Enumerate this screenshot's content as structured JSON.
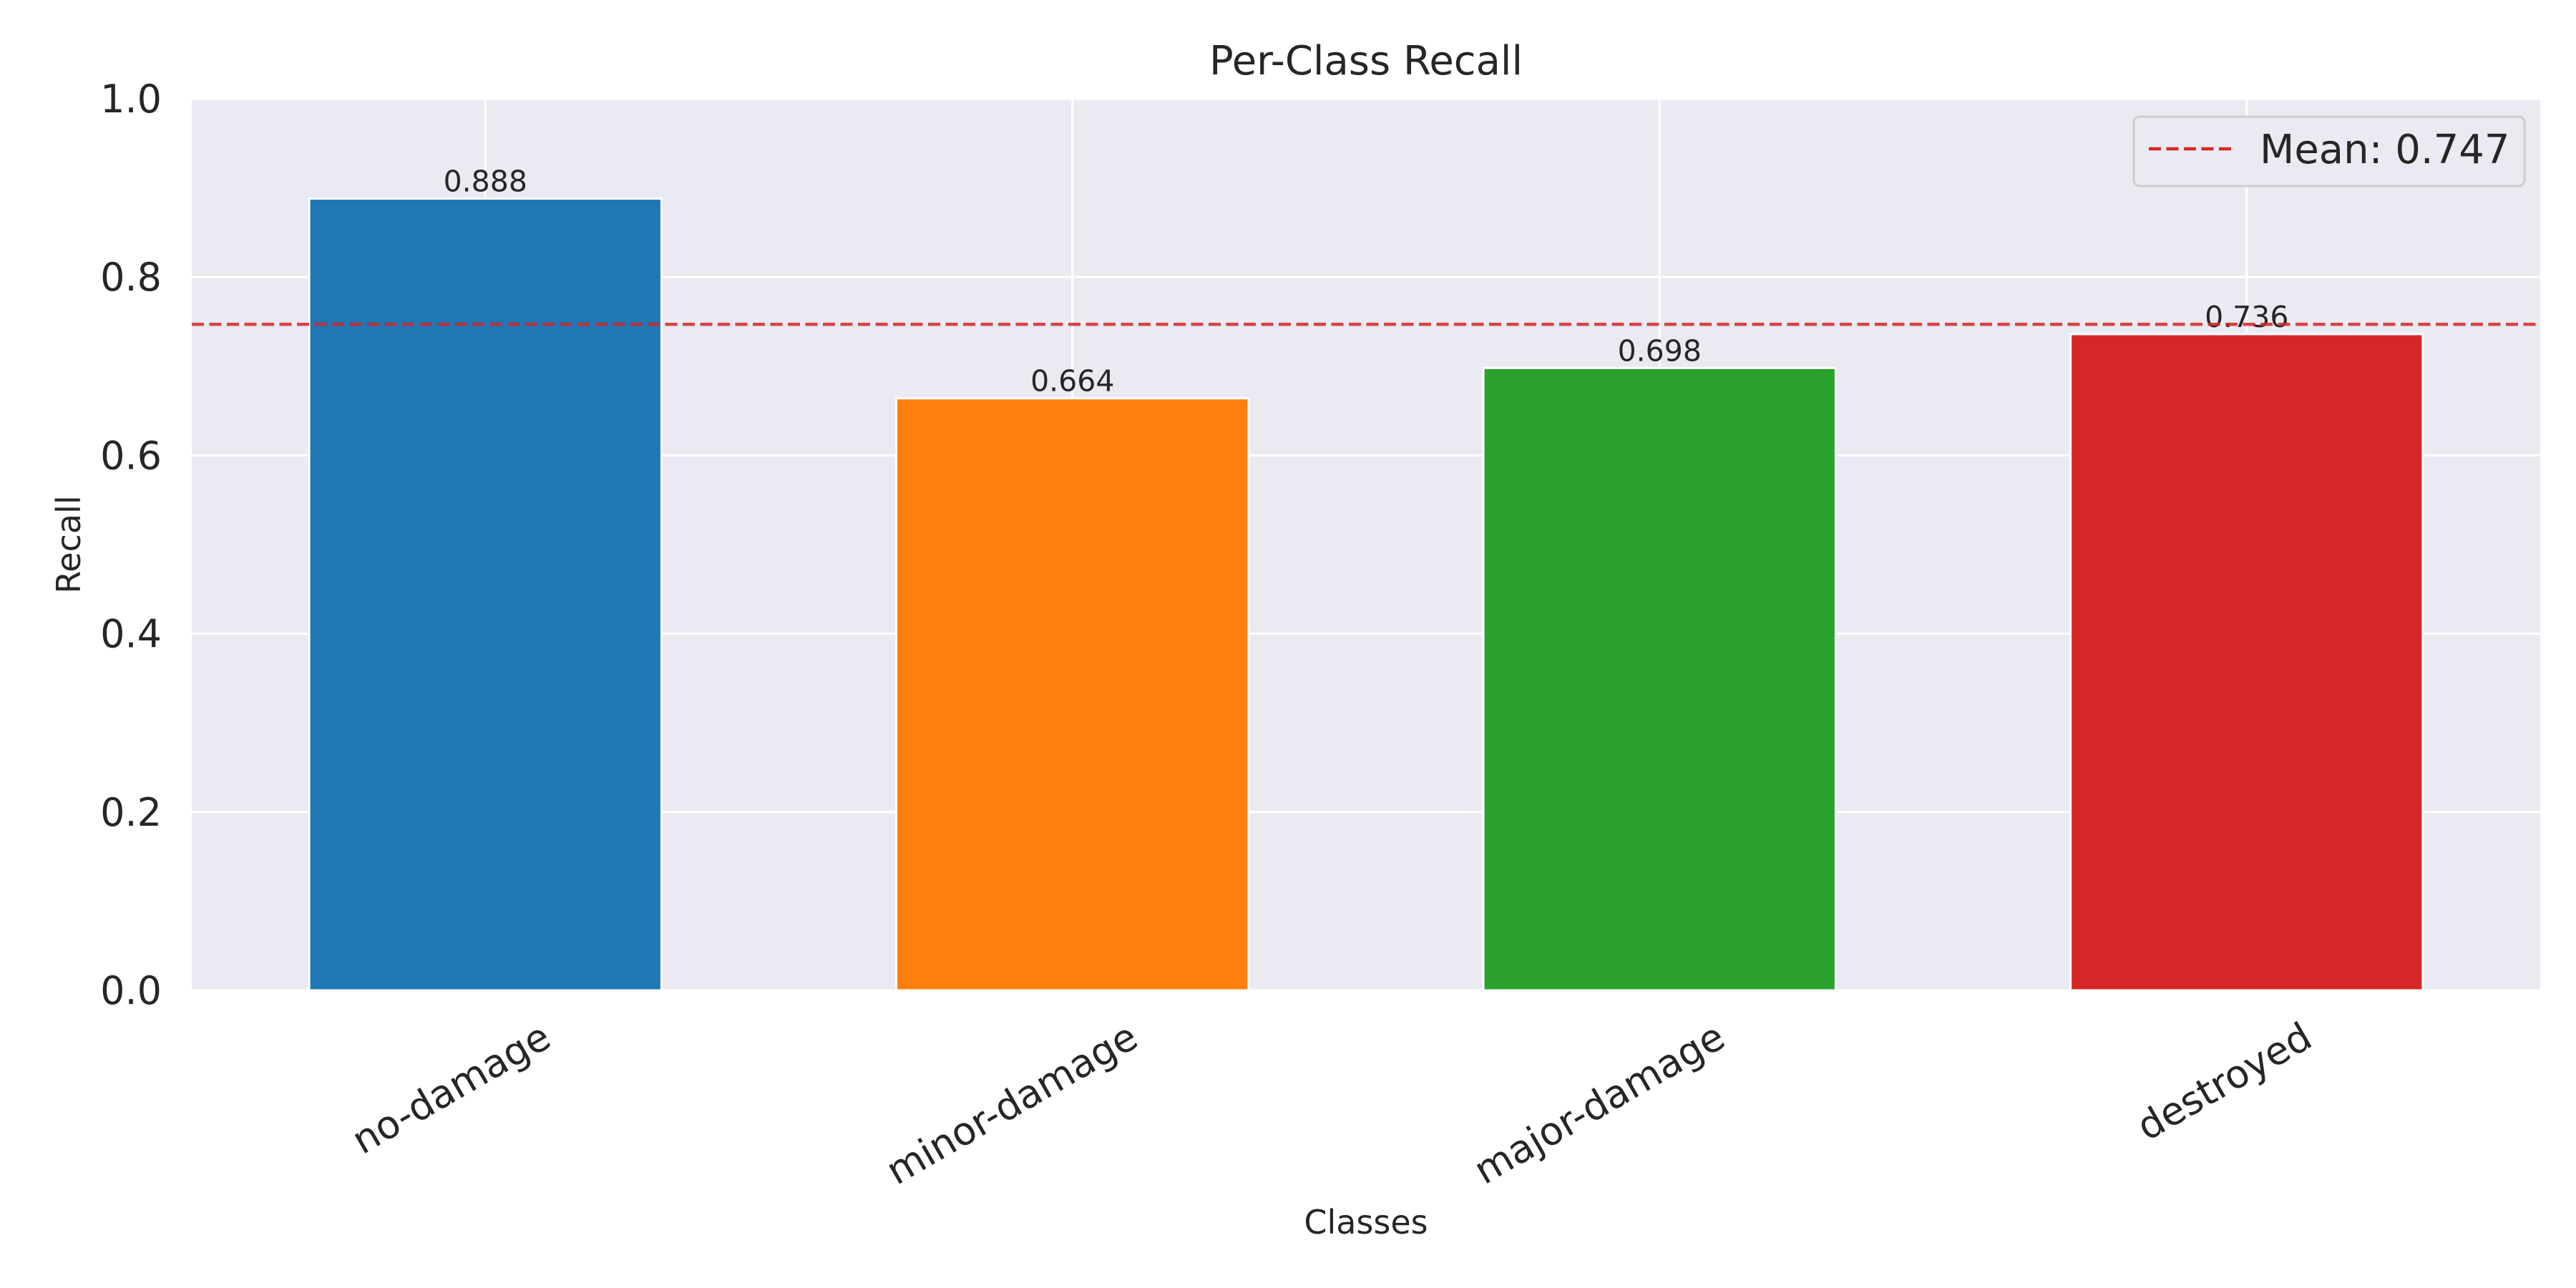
{
  "chart_data": {
    "type": "bar",
    "title": "Per-Class Recall",
    "xlabel": "Classes",
    "ylabel": "Recall",
    "categories": [
      "no-damage",
      "minor-damage",
      "major-damage",
      "destroyed"
    ],
    "values": [
      0.888,
      0.664,
      0.698,
      0.736
    ],
    "value_labels": [
      "0.888",
      "0.664",
      "0.698",
      "0.736"
    ],
    "colors": [
      "#1f77b4",
      "#ff7f0e",
      "#2ca02c",
      "#d62728"
    ],
    "ylim": [
      0,
      1.0
    ],
    "yticks": [
      {
        "value": 0.0,
        "label": "0.0"
      },
      {
        "value": 0.2,
        "label": "0.2"
      },
      {
        "value": 0.4,
        "label": "0.4"
      },
      {
        "value": 0.6,
        "label": "0.6"
      },
      {
        "value": 0.8,
        "label": "0.8"
      },
      {
        "value": 1.0,
        "label": "1.0"
      }
    ],
    "reference_line": {
      "value": 0.747,
      "label": "Mean: 0.747",
      "color": "#d62728",
      "style": "dashed"
    },
    "legend": {
      "placement": "top-right"
    },
    "grid": true,
    "background": "#eaeaf2"
  }
}
